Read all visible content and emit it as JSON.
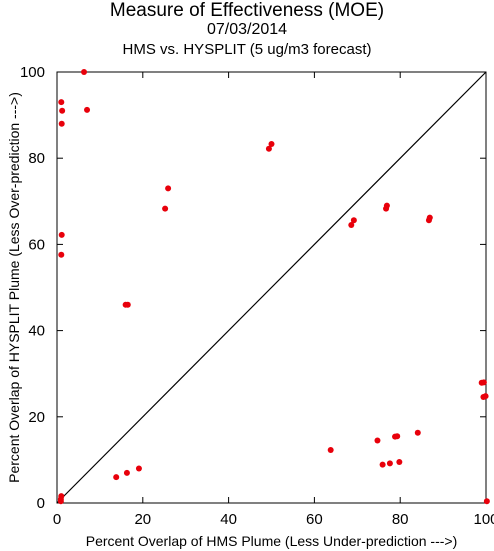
{
  "chart_data": {
    "type": "scatter",
    "title": "Measure of Effectiveness (MOE)",
    "subtitle_date": "07/03/2014",
    "subtitle": "HMS vs. HYSPLIT  (5 ug/m3 forecast)",
    "xlabel": "Percent Overlap of HMS Plume (Less Under-prediction --->)",
    "ylabel": "Percent Overlap of HYSPLIT Plume (Less Over-prediction --->)",
    "xlim": [
      0,
      100
    ],
    "ylim": [
      0,
      100
    ],
    "xticks": [
      "0",
      "20",
      "40",
      "60",
      "80",
      "100"
    ],
    "yticks": [
      "0",
      "20",
      "40",
      "60",
      "80",
      "100"
    ],
    "reference_line": "y = x",
    "point_color": "#e8000b",
    "points": [
      {
        "x": 6.3,
        "y": 100.0
      },
      {
        "x": 1.0,
        "y": 93.0
      },
      {
        "x": 1.2,
        "y": 91.0
      },
      {
        "x": 7.0,
        "y": 91.2
      },
      {
        "x": 1.1,
        "y": 88.0
      },
      {
        "x": 49.4,
        "y": 82.2
      },
      {
        "x": 50.0,
        "y": 83.3
      },
      {
        "x": 25.9,
        "y": 73.0
      },
      {
        "x": 25.2,
        "y": 68.3
      },
      {
        "x": 76.7,
        "y": 68.3
      },
      {
        "x": 76.9,
        "y": 69.0
      },
      {
        "x": 86.7,
        "y": 65.6
      },
      {
        "x": 86.9,
        "y": 66.2
      },
      {
        "x": 69.2,
        "y": 65.6
      },
      {
        "x": 68.6,
        "y": 64.5
      },
      {
        "x": 1.1,
        "y": 62.2
      },
      {
        "x": 1.0,
        "y": 57.6
      },
      {
        "x": 16.0,
        "y": 46.0
      },
      {
        "x": 16.5,
        "y": 46.0
      },
      {
        "x": 99.5,
        "y": 28.0
      },
      {
        "x": 99.0,
        "y": 27.9
      },
      {
        "x": 99.4,
        "y": 24.6
      },
      {
        "x": 99.9,
        "y": 24.8
      },
      {
        "x": 84.1,
        "y": 16.3
      },
      {
        "x": 78.8,
        "y": 15.4
      },
      {
        "x": 79.3,
        "y": 15.5
      },
      {
        "x": 74.7,
        "y": 14.5
      },
      {
        "x": 63.8,
        "y": 12.3
      },
      {
        "x": 79.8,
        "y": 9.5
      },
      {
        "x": 77.6,
        "y": 9.2
      },
      {
        "x": 75.9,
        "y": 8.9
      },
      {
        "x": 19.1,
        "y": 8.0
      },
      {
        "x": 16.3,
        "y": 7.0
      },
      {
        "x": 13.8,
        "y": 6.0
      },
      {
        "x": 1.0,
        "y": 1.6
      },
      {
        "x": 0.9,
        "y": 0.9
      },
      {
        "x": 0.9,
        "y": 0.4
      },
      {
        "x": 100.2,
        "y": 0.4
      }
    ]
  }
}
